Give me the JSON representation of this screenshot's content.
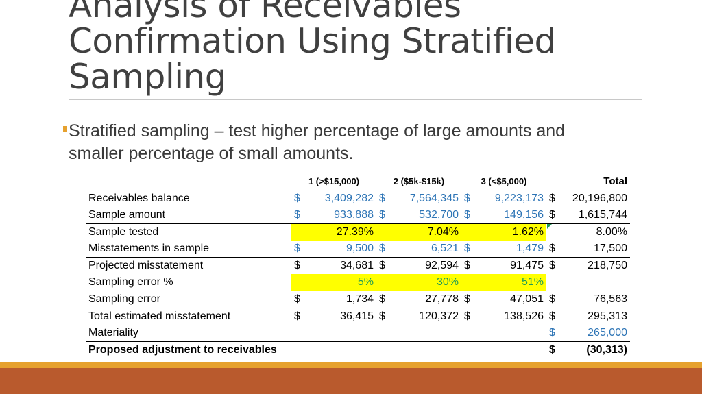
{
  "slide": {
    "title": "Analysis of Receivables Confirmation Using Stratified Sampling",
    "bullet_line1": "Stratified sampling – test higher percentage of large amounts and",
    "bullet_line2": "smaller percentage of small amounts."
  },
  "table": {
    "headers": [
      "1 (>$15,000)",
      "2 ($5k-$15k)",
      "3 (<$5,000)",
      "Total"
    ],
    "rows": [
      {
        "label": "Receivables balance",
        "c1": [
          "$",
          "3,409,282"
        ],
        "c2": [
          "$",
          "7,564,345"
        ],
        "c3": [
          "$",
          "9,223,173"
        ],
        "total": [
          "$",
          "20,196,800"
        ]
      },
      {
        "label": "Sample amount",
        "c1": [
          "$",
          "933,888"
        ],
        "c2": [
          "$",
          "532,700"
        ],
        "c3": [
          "$",
          "149,156"
        ],
        "total": [
          "$",
          "1,615,744"
        ]
      },
      {
        "label": "Sample tested",
        "c1": [
          "",
          "27.39%"
        ],
        "c2": [
          "",
          "7.04%"
        ],
        "c3": [
          "",
          "1.62%"
        ],
        "total": [
          "",
          "8.00%"
        ]
      },
      {
        "label": "Misstatements in sample",
        "c1": [
          "$",
          "9,500"
        ],
        "c2": [
          "$",
          "6,521"
        ],
        "c3": [
          "$",
          "1,479"
        ],
        "total": [
          "$",
          "17,500"
        ]
      },
      {
        "label": "Projected misstatement",
        "c1": [
          "$",
          "34,681"
        ],
        "c2": [
          "$",
          "92,594"
        ],
        "c3": [
          "$",
          "91,475"
        ],
        "total": [
          "$",
          "218,750"
        ]
      },
      {
        "label": "Sampling error %",
        "c1": [
          "",
          "5%"
        ],
        "c2": [
          "",
          "30%"
        ],
        "c3": [
          "",
          "51%"
        ],
        "total": [
          "",
          ""
        ]
      },
      {
        "label": "Sampling error",
        "c1": [
          "$",
          "1,734"
        ],
        "c2": [
          "$",
          "27,778"
        ],
        "c3": [
          "$",
          "47,051"
        ],
        "total": [
          "$",
          "76,563"
        ]
      },
      {
        "label": "Total estimated misstatement",
        "c1": [
          "$",
          "36,415"
        ],
        "c2": [
          "$",
          "120,372"
        ],
        "c3": [
          "$",
          "138,526"
        ],
        "total": [
          "$",
          "295,313"
        ]
      },
      {
        "label": "Materiality",
        "c1": [
          "",
          ""
        ],
        "c2": [
          "",
          ""
        ],
        "c3": [
          "",
          ""
        ],
        "total": [
          "$",
          "265,000"
        ]
      },
      {
        "label": "Proposed adjustment to receivables",
        "c1": [
          "",
          ""
        ],
        "c2": [
          "",
          ""
        ],
        "c3": [
          "",
          ""
        ],
        "total": [
          "$",
          "(30,313)"
        ]
      }
    ]
  },
  "colors": {
    "input_blue": "#2e75b6",
    "percent_green": "#1f9a55",
    "highlight": "#ffff00",
    "accent_orange": "#e6a12e",
    "footer_rust": "#b95a2d"
  }
}
